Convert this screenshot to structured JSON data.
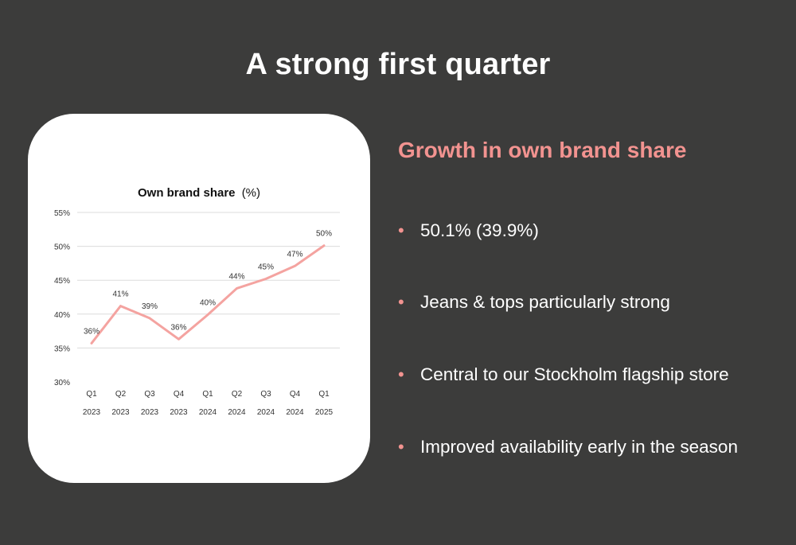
{
  "slide": {
    "title": "A strong first quarter",
    "heading": "Growth in own brand share",
    "bullets": [
      "50.1% (39.9%)",
      "Jeans & tops particularly strong",
      "Central to our Stockholm flagship store",
      "Improved availability early in the season"
    ]
  },
  "chart_data": {
    "type": "line",
    "title": "Own brand share",
    "title_unit": "(%)",
    "categories": [
      [
        "Q1",
        "2023"
      ],
      [
        "Q2",
        "2023"
      ],
      [
        "Q3",
        "2023"
      ],
      [
        "Q4",
        "2023"
      ],
      [
        "Q1",
        "2024"
      ],
      [
        "Q2",
        "2024"
      ],
      [
        "Q3",
        "2024"
      ],
      [
        "Q4",
        "2024"
      ],
      [
        "Q1",
        "2025"
      ]
    ],
    "series": [
      {
        "values": [
          35.7,
          41.2,
          39.4,
          36.3,
          39.9,
          43.8,
          45.2,
          47.1,
          50.1
        ],
        "labels": [
          "36%",
          "41%",
          "39%",
          "36%",
          "40%",
          "44%",
          "45%",
          "47%",
          "50%"
        ],
        "color": "#f4a3a0"
      }
    ],
    "ylim": [
      30,
      55
    ],
    "yticks": [
      30,
      35,
      40,
      45,
      50,
      55
    ],
    "ytick_labels": [
      "30%",
      "35%",
      "40%",
      "45%",
      "50%",
      "55%"
    ],
    "grid": true,
    "legend": "none"
  }
}
